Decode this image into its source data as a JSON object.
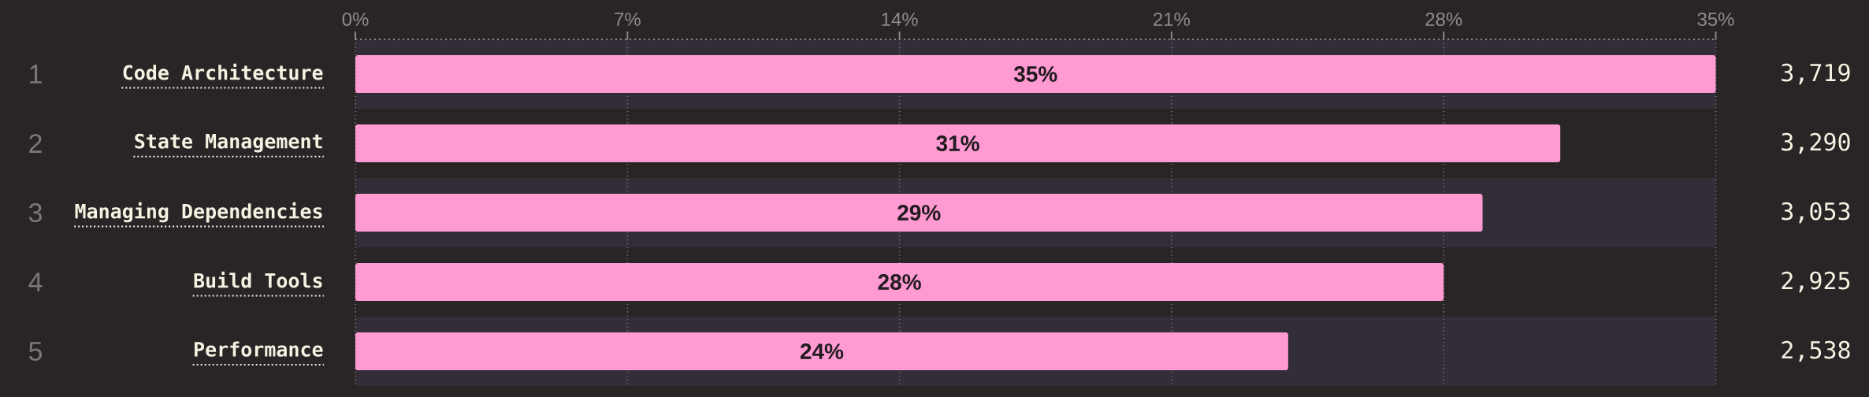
{
  "chart_data": {
    "type": "bar",
    "orientation": "horizontal",
    "categories": [
      "Code Architecture",
      "State Management",
      "Managing Dependencies",
      "Build Tools",
      "Performance"
    ],
    "values": [
      35,
      31,
      29,
      28,
      24
    ],
    "color": "#ff9bd2",
    "value_labels": [
      "35%",
      "31%",
      "29%",
      "28%",
      "24%"
    ],
    "xlim": [
      0,
      35
    ],
    "xticks": [
      {
        "value": 0,
        "label": "0%"
      },
      {
        "value": 7,
        "label": "7%"
      },
      {
        "value": 14,
        "label": "14%"
      },
      {
        "value": 21,
        "label": "21%"
      },
      {
        "value": 28,
        "label": "28%"
      },
      {
        "value": 35,
        "label": "35%"
      }
    ],
    "grid": "x",
    "y2_categories": [
      "3,719",
      "3,290",
      "3,053",
      "2,925",
      "2,538"
    ],
    "annotations": [
      "1",
      "2",
      "3",
      "4",
      "5"
    ]
  }
}
